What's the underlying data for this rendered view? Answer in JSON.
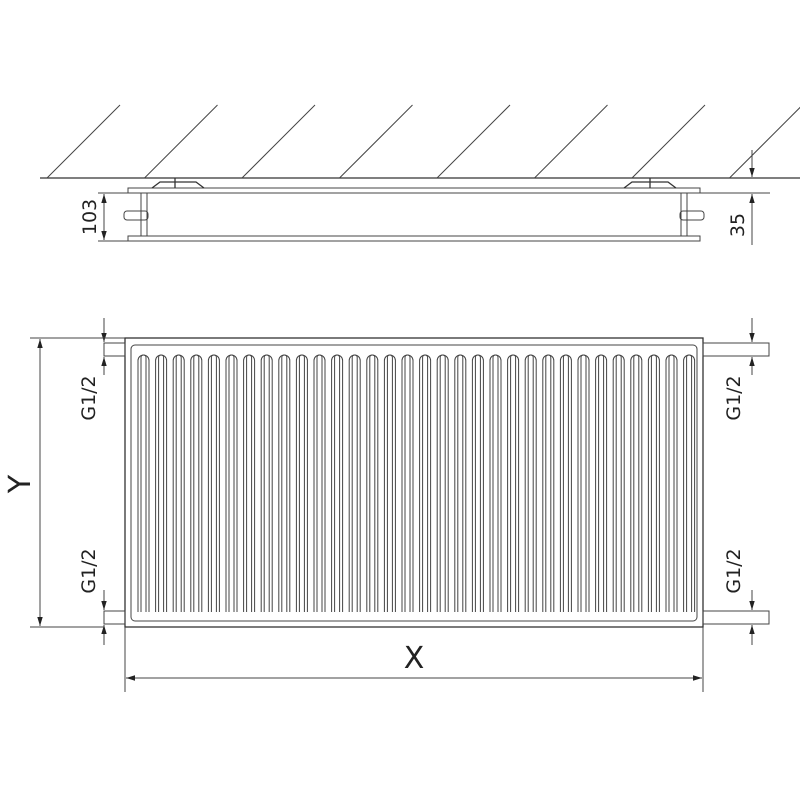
{
  "side_view": {
    "depth_label": "103",
    "wall_gap_label": "35"
  },
  "front_view": {
    "height_label": "Y",
    "width_label": "X",
    "connections": [
      "G1/2",
      "G1/2",
      "G1/2",
      "G1/2"
    ]
  },
  "colors": {
    "line": "#333333",
    "background": "#ffffff"
  }
}
